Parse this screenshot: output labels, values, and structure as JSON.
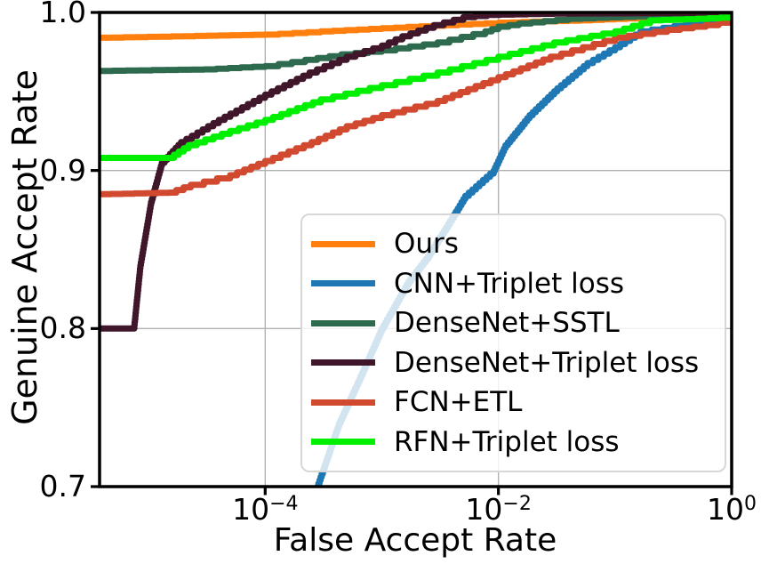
{
  "figure": {
    "background": "#ffffff",
    "spine_color": "#000000",
    "grid_color": "#b2b2b2",
    "legend_background": "rgba(255,255,255,0.8)",
    "legend_border_color": "#d7d7d7"
  },
  "chart_data": {
    "type": "line",
    "title": "",
    "xlabel": "False Accept Rate",
    "ylabel": "Genuine Accept Rate",
    "x_scale": "log",
    "y_scale": "linear",
    "xlim": [
      3.8e-06,
      1.0
    ],
    "ylim": [
      0.7,
      1.0
    ],
    "grid": true,
    "legend_position": "lower right",
    "x_ticks": [
      {
        "base": "10",
        "exp": "−4",
        "value": 0.0001
      },
      {
        "base": "10",
        "exp": "−2",
        "value": 0.01
      },
      {
        "base": "10",
        "exp": "0",
        "value": 1.0
      }
    ],
    "y_ticks": [
      {
        "label": "1.0",
        "value": 1.0
      },
      {
        "label": "0.9",
        "value": 0.9
      },
      {
        "label": "0.8",
        "value": 0.8
      },
      {
        "label": "0.7",
        "value": 0.7
      }
    ],
    "x_gridlines": [
      0.0001,
      0.01
    ],
    "y_gridlines": [
      0.9,
      0.8
    ],
    "series": [
      {
        "name": "Ours",
        "color": "#ff7f0e",
        "points": [
          [
            3.8e-06,
            0.984
          ],
          [
            2e-05,
            0.985
          ],
          [
            0.0001,
            0.986
          ],
          [
            0.0003,
            0.988
          ],
          [
            0.001,
            0.99
          ],
          [
            0.0035,
            0.992
          ],
          [
            0.01,
            0.9935
          ],
          [
            0.05,
            0.995
          ],
          [
            0.16,
            0.9965
          ],
          [
            0.5,
            0.9975
          ],
          [
            1.0,
            0.998
          ]
        ]
      },
      {
        "name": "CNN+Triplet loss",
        "color": "#1f77b4",
        "points": [
          [
            0.00024,
            0.655
          ],
          [
            0.00028,
            0.7
          ],
          [
            0.00043,
            0.74
          ],
          [
            0.00066,
            0.77
          ],
          [
            0.001,
            0.8
          ],
          [
            0.0017,
            0.83
          ],
          [
            0.0025,
            0.846
          ],
          [
            0.004,
            0.87
          ],
          [
            0.0052,
            0.884
          ],
          [
            0.0091,
            0.9
          ],
          [
            0.0115,
            0.916
          ],
          [
            0.0185,
            0.935
          ],
          [
            0.032,
            0.952
          ],
          [
            0.058,
            0.968
          ],
          [
            0.1,
            0.978
          ],
          [
            0.165,
            0.988
          ],
          [
            0.4,
            0.9925
          ],
          [
            1.0,
            0.9955
          ]
        ]
      },
      {
        "name": "DenseNet+SSTL",
        "color": "#2e6b4e",
        "points": [
          [
            3.8e-06,
            0.963
          ],
          [
            3e-05,
            0.964
          ],
          [
            0.0001,
            0.966
          ],
          [
            0.00022,
            0.97
          ],
          [
            0.00045,
            0.9735
          ],
          [
            0.001,
            0.976
          ],
          [
            0.003,
            0.981
          ],
          [
            0.0077,
            0.988
          ],
          [
            0.01,
            0.991
          ],
          [
            0.015,
            0.993
          ],
          [
            0.04,
            0.996
          ],
          [
            0.15,
            0.9975
          ],
          [
            1.0,
            0.999
          ]
        ]
      },
      {
        "name": "DenseNet+Triplet loss",
        "color": "#40162a",
        "points": [
          [
            3.8e-06,
            0.8
          ],
          [
            7.5e-06,
            0.8
          ],
          [
            8.5e-06,
            0.84
          ],
          [
            1.05e-05,
            0.88
          ],
          [
            1.3e-05,
            0.905
          ],
          [
            1.9e-05,
            0.918
          ],
          [
            4e-05,
            0.932
          ],
          [
            0.0001,
            0.948
          ],
          [
            0.00024,
            0.962
          ],
          [
            0.0005,
            0.972
          ],
          [
            0.001,
            0.979
          ],
          [
            0.0015,
            0.985
          ],
          [
            0.0028,
            0.992
          ],
          [
            0.005,
            0.997
          ],
          [
            0.008,
            0.9985
          ],
          [
            0.03,
            0.9993
          ],
          [
            1.0,
            0.9997
          ]
        ]
      },
      {
        "name": "FCN+ETL",
        "color": "#d1492e",
        "points": [
          [
            3.8e-06,
            0.885
          ],
          [
            1.5e-05,
            0.886
          ],
          [
            2.3e-05,
            0.891
          ],
          [
            5e-05,
            0.897
          ],
          [
            0.0001,
            0.906
          ],
          [
            0.00025,
            0.918
          ],
          [
            0.0005,
            0.928
          ],
          [
            0.001,
            0.935
          ],
          [
            0.003,
            0.944
          ],
          [
            0.01,
            0.959
          ],
          [
            0.028,
            0.972
          ],
          [
            0.1,
            0.984
          ],
          [
            0.28,
            0.989
          ],
          [
            0.6,
            0.992
          ],
          [
            1.0,
            0.995
          ]
        ]
      },
      {
        "name": "RFN+Triplet loss",
        "color": "#00ef00",
        "points": [
          [
            3.8e-06,
            0.908
          ],
          [
            1.5e-05,
            0.908
          ],
          [
            2.2e-05,
            0.916
          ],
          [
            5e-05,
            0.925
          ],
          [
            0.0001,
            0.932
          ],
          [
            0.0003,
            0.945
          ],
          [
            0.001,
            0.954
          ],
          [
            0.003,
            0.962
          ],
          [
            0.01,
            0.972
          ],
          [
            0.03,
            0.981
          ],
          [
            0.1,
            0.988
          ],
          [
            0.2,
            0.995
          ],
          [
            0.5,
            0.996
          ],
          [
            1.0,
            0.997
          ]
        ]
      }
    ]
  }
}
